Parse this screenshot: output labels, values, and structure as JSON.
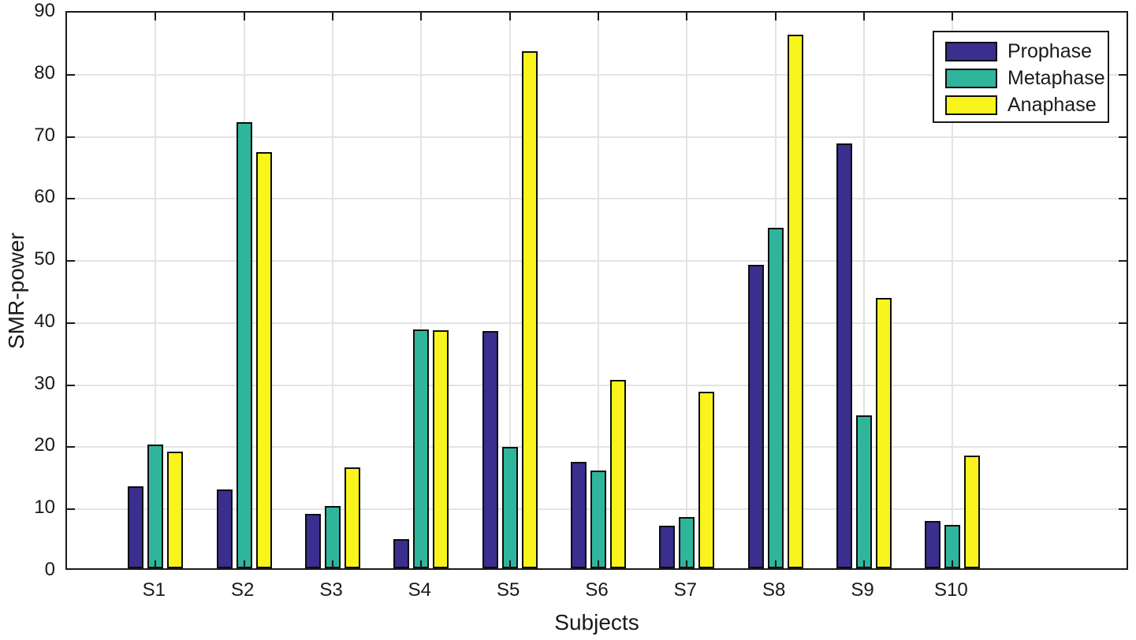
{
  "chart_data": {
    "type": "bar",
    "title": "",
    "xlabel": "Subjects",
    "ylabel": "SMR-power",
    "categories": [
      "S1",
      "S2",
      "S3",
      "S4",
      "S5",
      "S6",
      "S7",
      "S8",
      "S9",
      "S10"
    ],
    "series": [
      {
        "name": "Prophase",
        "color": "#3A2E8E",
        "values": [
          13.2,
          12.7,
          8.8,
          4.7,
          38.2,
          17.1,
          6.8,
          48.9,
          68.4,
          7.6
        ]
      },
      {
        "name": "Metaphase",
        "color": "#2FB59B",
        "values": [
          19.9,
          71.9,
          10.0,
          38.5,
          19.5,
          15.8,
          8.2,
          54.8,
          24.6,
          7.0
        ]
      },
      {
        "name": "Anaphase",
        "color": "#F9F41C",
        "values": [
          18.8,
          67.0,
          16.3,
          38.3,
          83.3,
          30.4,
          28.4,
          86.0,
          43.5,
          18.1
        ]
      }
    ],
    "ylim": [
      0,
      90
    ],
    "yticks": [
      0,
      10,
      20,
      30,
      40,
      50,
      60,
      70,
      80,
      90
    ],
    "xlim_units": 12,
    "grid": "on",
    "legend_position": "top-right",
    "colors": {
      "bar_edge": "#0d0d0d",
      "grid": "#e3e3e3",
      "axis": "#1a1a1a",
      "background": "#ffffff"
    }
  }
}
